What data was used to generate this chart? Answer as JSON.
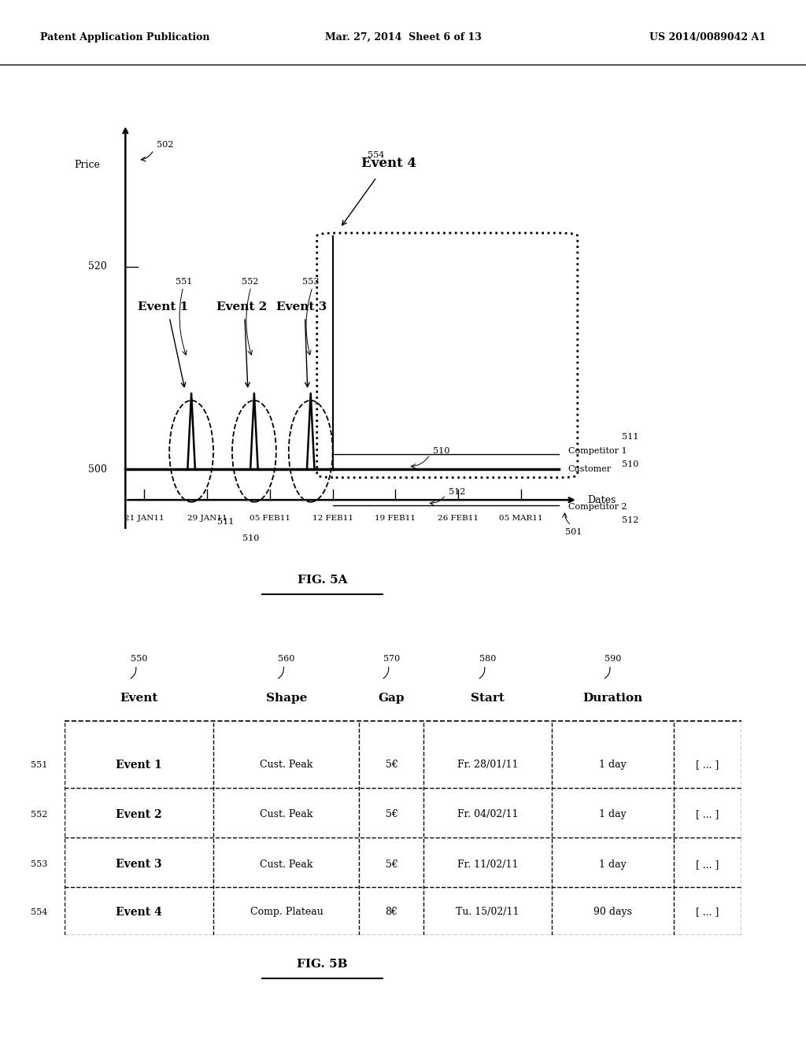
{
  "header_left": "Patent Application Publication",
  "header_center": "Mar. 27, 2014  Sheet 6 of 13",
  "header_right": "US 2014/0089042 A1",
  "fig5a_label": "FIG. 5A",
  "fig5b_label": "FIG. 5B",
  "chart": {
    "x_ticks": [
      "21 JAN11",
      "29 JAN11",
      "05 FEB11",
      "12 FEB11",
      "19 FEB11",
      "26 FEB11",
      "05 MAR11"
    ],
    "y_label": "Price",
    "x_label": "Dates",
    "price_label": "502",
    "dates_label": "501",
    "customer_line_label": "510",
    "competitor1_label": "511",
    "competitor2_label": "512",
    "ref_551": "551",
    "ref_552": "552",
    "ref_553": "553",
    "ref_554": "554",
    "ref_510": "510",
    "ref_511": "511",
    "ref_512": "512"
  },
  "table": {
    "col_headers": [
      "Event",
      "Shape",
      "Gap",
      "Start",
      "Duration"
    ],
    "col_refs": [
      "550",
      "560",
      "570",
      "580",
      "590"
    ],
    "rows": [
      {
        "ref": "551",
        "event": "Event 1",
        "shape": "Cust. Peak",
        "gap": "5€",
        "start": "Fr. 28/01/11",
        "duration": "1 day",
        "extra": "[ ... ]"
      },
      {
        "ref": "552",
        "event": "Event 2",
        "shape": "Cust. Peak",
        "gap": "5€",
        "start": "Fr. 04/02/11",
        "duration": "1 day",
        "extra": "[ ... ]"
      },
      {
        "ref": "553",
        "event": "Event 3",
        "shape": "Cust. Peak",
        "gap": "5€",
        "start": "Fr. 11/02/11",
        "duration": "1 day",
        "extra": "[ ... ]"
      },
      {
        "ref": "554",
        "event": "Event 4",
        "shape": "Comp. Plateau",
        "gap": "8€",
        "start": "Tu. 15/02/11",
        "duration": "90 days",
        "extra": "[ ... ]"
      }
    ]
  }
}
